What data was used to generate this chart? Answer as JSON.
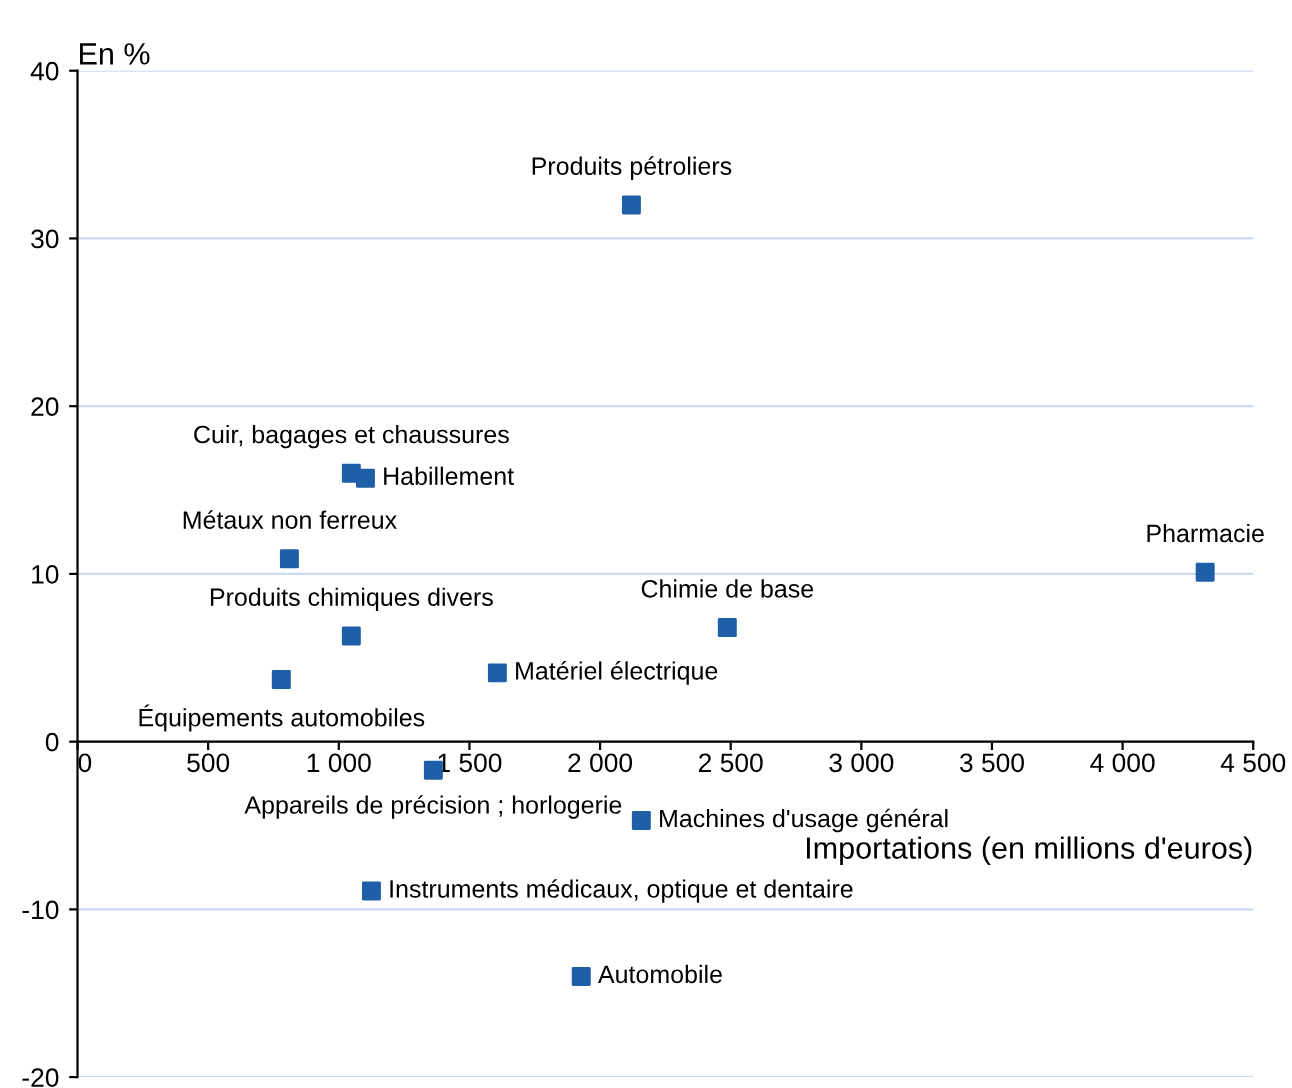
{
  "chart_data": {
    "type": "scatter",
    "xlabel": "Importations (en millions d'euros)",
    "ylabel": "En %",
    "x": [
      2120,
      1048,
      1102,
      811,
      1048,
      780,
      1607,
      2487,
      4316,
      1362,
      2158,
      1125,
      1928
    ],
    "series": [
      {
        "color": "#1f5fa8",
        "values": [
          32,
          16.0,
          15.7,
          10.9,
          6.3,
          3.7,
          4.1,
          6.8,
          10.1,
          -1.7,
          -4.7,
          -8.9,
          -14.0
        ]
      }
    ],
    "annotations": [
      {
        "text": "Produits pétroliers",
        "x": 2120,
        "y": 32
      },
      {
        "text": "Cuir, bagages et chaussures",
        "x": 1048,
        "y": 16.0
      },
      {
        "text": "Habillement",
        "x": 1102,
        "y": 15.7
      },
      {
        "text": "Métaux non ferreux",
        "x": 811,
        "y": 10.9
      },
      {
        "text": "Produits chimiques divers",
        "x": 1048,
        "y": 6.3
      },
      {
        "text": "Équipements automobiles",
        "x": 780,
        "y": 3.7
      },
      {
        "text": "Matériel électrique",
        "x": 1607,
        "y": 4.1
      },
      {
        "text": "Chimie de base",
        "x": 2487,
        "y": 6.8
      },
      {
        "text": "Pharmacie",
        "x": 4316,
        "y": 10.1
      },
      {
        "text": "Appareils de précision ; horlogerie",
        "x": 1362,
        "y": -1.7
      },
      {
        "text": "Machines d'usage général",
        "x": 2158,
        "y": -4.7
      },
      {
        "text": "Instruments médicaux, optique et dentaire",
        "x": 1125,
        "y": -8.9
      },
      {
        "text": "Automobile",
        "x": 1928,
        "y": -14.0
      }
    ],
    "xlim": [
      0,
      4500
    ],
    "xticks": [
      0,
      {
        "value": 500,
        "label": "500"
      },
      {
        "value": 1000,
        "label": "1 000"
      },
      {
        "value": 1500,
        "label": "1 500"
      },
      {
        "value": 2000,
        "label": "2 000"
      },
      {
        "value": 2500,
        "label": "2 500"
      },
      {
        "value": 3000,
        "label": "3 000"
      },
      {
        "value": 3500,
        "label": "3 500"
      },
      {
        "value": 4000,
        "label": "4 000"
      },
      {
        "value": 4500,
        "label": "4 500"
      }
    ],
    "ylim": [
      -20,
      40
    ],
    "yticks": [
      -20,
      -10,
      0,
      10,
      20,
      30,
      40
    ],
    "grid": "y",
    "marker": "square",
    "legend": false
  }
}
